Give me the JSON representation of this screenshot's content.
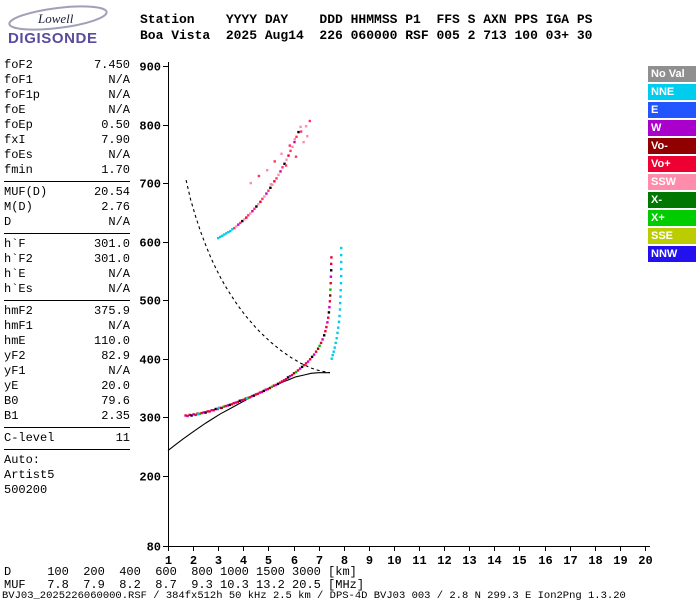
{
  "logo": {
    "brand": "Lowell",
    "product": "DIGISONDE"
  },
  "header": {
    "line1": "Station    YYYY DAY    DDD HHMMSS P1  FFS S AXN PPS IGA PS",
    "line2": "Boa Vista  2025 Aug14  226 060000 RSF 005 2 713 100 03+ 30"
  },
  "parameters": {
    "groups": [
      {
        "rows": [
          {
            "label": "foF2",
            "value": "7.450"
          },
          {
            "label": "foF1",
            "value": "N/A"
          },
          {
            "label": "foF1p",
            "value": "N/A"
          },
          {
            "label": "foE",
            "value": "N/A"
          },
          {
            "label": "foEp",
            "value": "0.50"
          },
          {
            "label": "fxI",
            "value": "7.90"
          },
          {
            "label": "foEs",
            "value": "N/A"
          },
          {
            "label": "fmin",
            "value": "1.70"
          }
        ]
      },
      {
        "rows": [
          {
            "label": "MUF(D)",
            "value": "20.54"
          },
          {
            "label": "M(D)",
            "value": "2.76"
          },
          {
            "label": "D",
            "value": "N/A"
          }
        ]
      },
      {
        "rows": [
          {
            "label": "h`F",
            "value": "301.0"
          },
          {
            "label": "h`F2",
            "value": "301.0"
          },
          {
            "label": "h`E",
            "value": "N/A"
          },
          {
            "label": "h`Es",
            "value": "N/A"
          }
        ]
      },
      {
        "rows": [
          {
            "label": "hmF2",
            "value": "375.9"
          },
          {
            "label": "hmF1",
            "value": "N/A"
          },
          {
            "label": "hmE",
            "value": "110.0"
          },
          {
            "label": "yF2",
            "value": "82.9"
          },
          {
            "label": "yF1",
            "value": "N/A"
          },
          {
            "label": "yE",
            "value": "20.0"
          },
          {
            "label": "B0",
            "value": "79.6"
          },
          {
            "label": "B1",
            "value": "2.35"
          }
        ]
      },
      {
        "rows": [
          {
            "label": "C-level",
            "value": "11"
          }
        ]
      },
      {
        "rows": [
          {
            "label": "Auto:",
            "value": ""
          },
          {
            "label": "Artist5",
            "value": ""
          },
          {
            "label": "500200",
            "value": ""
          }
        ]
      }
    ]
  },
  "legend": {
    "items": [
      {
        "label": "No Val",
        "color": "#8f8f8f",
        "text_color": "#ffffff"
      },
      {
        "label": "NNE",
        "color": "#00ccee",
        "text_color": "#ffffff"
      },
      {
        "label": "E",
        "color": "#2255ff",
        "text_color": "#ffffff"
      },
      {
        "label": "W",
        "color": "#aa00cc",
        "text_color": "#ffffff"
      },
      {
        "label": "Vo-",
        "color": "#900000",
        "text_color": "#ffffff"
      },
      {
        "label": "Vo+",
        "color": "#ee0033",
        "text_color": "#ffffff"
      },
      {
        "label": "SSW",
        "color": "#ff8caa",
        "text_color": "#ffffff"
      },
      {
        "label": "X-",
        "color": "#007700",
        "text_color": "#ffffff"
      },
      {
        "label": "X+",
        "color": "#00cc00",
        "text_color": "#ffffff"
      },
      {
        "label": "SSE",
        "color": "#bbcc00",
        "text_color": "#ffffff"
      },
      {
        "label": "NNW",
        "color": "#2211ee",
        "text_color": "#ffffff"
      }
    ]
  },
  "distance_muf_table": {
    "line1": "D     100  200  400  600  800 1000 1500 3000 [km]",
    "line2": "MUF   7.8  7.9  8.2  8.7  9.3 10.3 13.2 20.5 [MHz]"
  },
  "footer": "BVJ03_2025226060000.RSF / 384fx512h 50 kHz 2.5 km / DPS-4D BVJ03 003 / 2.8 N 299.3 E Ion2Png 1.3.20",
  "chart_data": {
    "type": "scatter",
    "x_unit": "MHz",
    "y_unit": "km",
    "x_range": [
      1,
      20
    ],
    "y_range": [
      80,
      900
    ],
    "x_ticks": [
      1,
      2,
      3,
      4,
      5,
      6,
      7,
      8,
      9,
      10,
      11,
      12,
      13,
      14,
      15,
      16,
      17,
      18,
      19,
      20
    ],
    "y_ticks": [
      900,
      800,
      700,
      600,
      500,
      400,
      300,
      200,
      80
    ],
    "series": [
      {
        "name": "f-trace-o-mode",
        "palette": [
          "#ee0033",
          "#cc00cc",
          "#ee0033",
          "#000000",
          "#cc00cc",
          "#ee0033",
          "#900000",
          "#00bb00",
          "#ee0033",
          "#cc00cc",
          "#000000",
          "#ee0033"
        ],
        "points": [
          [
            1.7,
            303
          ],
          [
            1.78,
            302
          ],
          [
            1.86,
            304
          ],
          [
            1.94,
            303
          ],
          [
            2.02,
            305
          ],
          [
            2.1,
            304
          ],
          [
            2.18,
            306
          ],
          [
            2.26,
            306
          ],
          [
            2.34,
            307
          ],
          [
            2.42,
            308
          ],
          [
            2.5,
            308
          ],
          [
            2.58,
            310
          ],
          [
            2.66,
            310
          ],
          [
            2.74,
            312
          ],
          [
            2.82,
            312
          ],
          [
            2.9,
            314
          ],
          [
            2.98,
            314
          ],
          [
            3.06,
            316
          ],
          [
            3.14,
            316
          ],
          [
            3.22,
            318
          ],
          [
            3.3,
            319
          ],
          [
            3.38,
            320
          ],
          [
            3.46,
            321
          ],
          [
            3.54,
            322
          ],
          [
            3.62,
            324
          ],
          [
            3.7,
            325
          ],
          [
            3.78,
            326
          ],
          [
            3.86,
            328
          ],
          [
            3.94,
            329
          ],
          [
            4.02,
            330
          ],
          [
            4.1,
            332
          ],
          [
            4.18,
            333
          ],
          [
            4.26,
            334
          ],
          [
            4.34,
            336
          ],
          [
            4.42,
            337
          ],
          [
            4.5,
            339
          ],
          [
            4.58,
            340
          ],
          [
            4.66,
            342
          ],
          [
            4.74,
            343
          ],
          [
            4.82,
            345
          ],
          [
            4.9,
            347
          ],
          [
            4.98,
            348
          ],
          [
            5.06,
            350
          ],
          [
            5.14,
            352
          ],
          [
            5.22,
            354
          ],
          [
            5.3,
            355
          ],
          [
            5.38,
            357
          ],
          [
            5.46,
            359
          ],
          [
            5.54,
            361
          ],
          [
            5.62,
            363
          ],
          [
            5.7,
            365
          ],
          [
            5.78,
            368
          ],
          [
            5.86,
            370
          ],
          [
            5.94,
            372
          ],
          [
            6.02,
            375
          ],
          [
            6.1,
            377
          ],
          [
            6.18,
            380
          ],
          [
            6.26,
            383
          ],
          [
            6.34,
            386
          ],
          [
            6.42,
            389
          ],
          [
            6.5,
            392
          ],
          [
            6.58,
            395
          ],
          [
            6.66,
            399
          ],
          [
            6.74,
            403
          ],
          [
            6.82,
            407
          ],
          [
            6.9,
            412
          ],
          [
            6.98,
            417
          ],
          [
            7.04,
            422
          ],
          [
            7.1,
            427
          ],
          [
            7.16,
            433
          ],
          [
            7.22,
            440
          ],
          [
            7.27,
            447
          ],
          [
            7.31,
            454
          ],
          [
            7.35,
            462
          ],
          [
            7.38,
            470
          ],
          [
            7.41,
            479
          ],
          [
            7.43,
            488
          ],
          [
            7.45,
            498
          ],
          [
            7.46,
            508
          ],
          [
            7.47,
            518
          ],
          [
            7.48,
            529
          ],
          [
            7.49,
            540
          ],
          [
            7.5,
            551
          ],
          [
            7.5,
            562
          ],
          [
            7.51,
            573
          ]
        ]
      },
      {
        "name": "f-trace-x-mode",
        "palette": [
          "#00ccee"
        ],
        "points": [
          [
            2.2,
            305
          ],
          [
            3.02,
            316
          ],
          [
            4.14,
            332
          ],
          [
            7.52,
            400
          ],
          [
            7.56,
            406
          ],
          [
            7.6,
            412
          ],
          [
            7.64,
            419
          ],
          [
            7.68,
            427
          ],
          [
            7.72,
            435
          ],
          [
            7.75,
            444
          ],
          [
            7.78,
            453
          ],
          [
            7.81,
            463
          ],
          [
            7.83,
            473
          ],
          [
            7.85,
            484
          ],
          [
            7.86,
            495
          ],
          [
            7.87,
            506
          ],
          [
            7.88,
            517
          ],
          [
            7.89,
            529
          ],
          [
            7.9,
            541
          ],
          [
            7.9,
            553
          ],
          [
            7.9,
            565
          ],
          [
            7.9,
            577
          ],
          [
            7.9,
            589
          ]
        ]
      },
      {
        "name": "second-hop-onset",
        "palette": [
          "#00ccee"
        ],
        "points": [
          [
            3.0,
            606
          ],
          [
            3.08,
            608
          ],
          [
            3.16,
            610
          ],
          [
            3.24,
            612
          ],
          [
            3.32,
            614
          ],
          [
            3.4,
            616
          ],
          [
            3.48,
            618
          ],
          [
            3.56,
            621
          ]
        ]
      },
      {
        "name": "second-hop-trace",
        "palette": [
          "#ff3366",
          "#ff8caa",
          "#cc00cc",
          "#ff3366",
          "#000000",
          "#ff8caa",
          "#ee0033"
        ],
        "points": [
          [
            3.64,
            623
          ],
          [
            3.72,
            626
          ],
          [
            3.8,
            629
          ],
          [
            3.88,
            632
          ],
          [
            3.96,
            635
          ],
          [
            4.04,
            638
          ],
          [
            4.12,
            641
          ],
          [
            4.2,
            645
          ],
          [
            4.28,
            648
          ],
          [
            4.36,
            652
          ],
          [
            4.44,
            656
          ],
          [
            4.52,
            660
          ],
          [
            4.6,
            664
          ],
          [
            4.68,
            668
          ],
          [
            4.76,
            673
          ],
          [
            4.84,
            677
          ],
          [
            4.92,
            682
          ],
          [
            5.0,
            687
          ],
          [
            5.08,
            692
          ],
          [
            5.16,
            697
          ],
          [
            5.24,
            703
          ],
          [
            5.32,
            708
          ],
          [
            5.4,
            714
          ],
          [
            5.48,
            720
          ],
          [
            5.56,
            727
          ],
          [
            5.64,
            733
          ],
          [
            5.72,
            740
          ],
          [
            5.8,
            747
          ],
          [
            5.88,
            755
          ],
          [
            5.96,
            762
          ],
          [
            6.04,
            770
          ],
          [
            6.12,
            779
          ],
          [
            6.2,
            787
          ],
          [
            6.28,
            796
          ]
        ]
      },
      {
        "name": "spread-f-speckle",
        "palette": [
          "#ff8caa",
          "#ff3366"
        ],
        "points": [
          [
            4.3,
            700
          ],
          [
            4.62,
            712
          ],
          [
            4.95,
            722
          ],
          [
            5.25,
            737
          ],
          [
            5.52,
            750
          ],
          [
            5.85,
            764
          ],
          [
            6.05,
            775
          ],
          [
            6.3,
            788
          ],
          [
            6.5,
            797
          ],
          [
            6.65,
            806
          ],
          [
            5.1,
            698
          ],
          [
            5.7,
            730
          ],
          [
            6.4,
            770
          ],
          [
            6.1,
            745
          ],
          [
            6.55,
            780
          ]
        ]
      }
    ],
    "curves": [
      {
        "name": "muf-transmission-curve",
        "dash": "3 3",
        "color": "#000000",
        "points": [
          [
            1.72,
            705
          ],
          [
            1.9,
            672
          ],
          [
            2.1,
            643
          ],
          [
            2.3,
            617
          ],
          [
            2.5,
            594
          ],
          [
            2.7,
            573
          ],
          [
            2.9,
            555
          ],
          [
            3.1,
            538
          ],
          [
            3.3,
            523
          ],
          [
            3.5,
            509
          ],
          [
            3.7,
            496
          ],
          [
            3.9,
            484
          ],
          [
            4.1,
            473
          ],
          [
            4.3,
            463
          ],
          [
            4.5,
            453
          ],
          [
            4.7,
            444
          ],
          [
            4.9,
            436
          ],
          [
            5.1,
            428
          ],
          [
            5.3,
            421
          ],
          [
            5.5,
            414
          ],
          [
            5.7,
            408
          ],
          [
            5.9,
            402
          ],
          [
            6.1,
            397
          ],
          [
            6.3,
            392
          ],
          [
            6.5,
            388
          ],
          [
            6.7,
            384
          ],
          [
            6.9,
            381
          ],
          [
            7.1,
            379
          ],
          [
            7.3,
            377
          ],
          [
            7.45,
            376
          ]
        ]
      },
      {
        "name": "true-height-profile",
        "dash": "",
        "color": "#000000",
        "points": [
          [
            1.0,
            243
          ],
          [
            1.3,
            253
          ],
          [
            1.6,
            263
          ],
          [
            1.9,
            272
          ],
          [
            2.2,
            281
          ],
          [
            2.5,
            290
          ],
          [
            2.8,
            298
          ],
          [
            3.1,
            306
          ],
          [
            3.4,
            313
          ],
          [
            3.7,
            320
          ],
          [
            4.0,
            327
          ],
          [
            4.3,
            334
          ],
          [
            4.6,
            341
          ],
          [
            4.9,
            347
          ],
          [
            5.2,
            353
          ],
          [
            5.5,
            359
          ],
          [
            5.8,
            364
          ],
          [
            6.1,
            369
          ],
          [
            6.4,
            372
          ],
          [
            6.7,
            375
          ],
          [
            7.0,
            376
          ],
          [
            7.2,
            376
          ],
          [
            7.45,
            376
          ]
        ]
      }
    ]
  }
}
